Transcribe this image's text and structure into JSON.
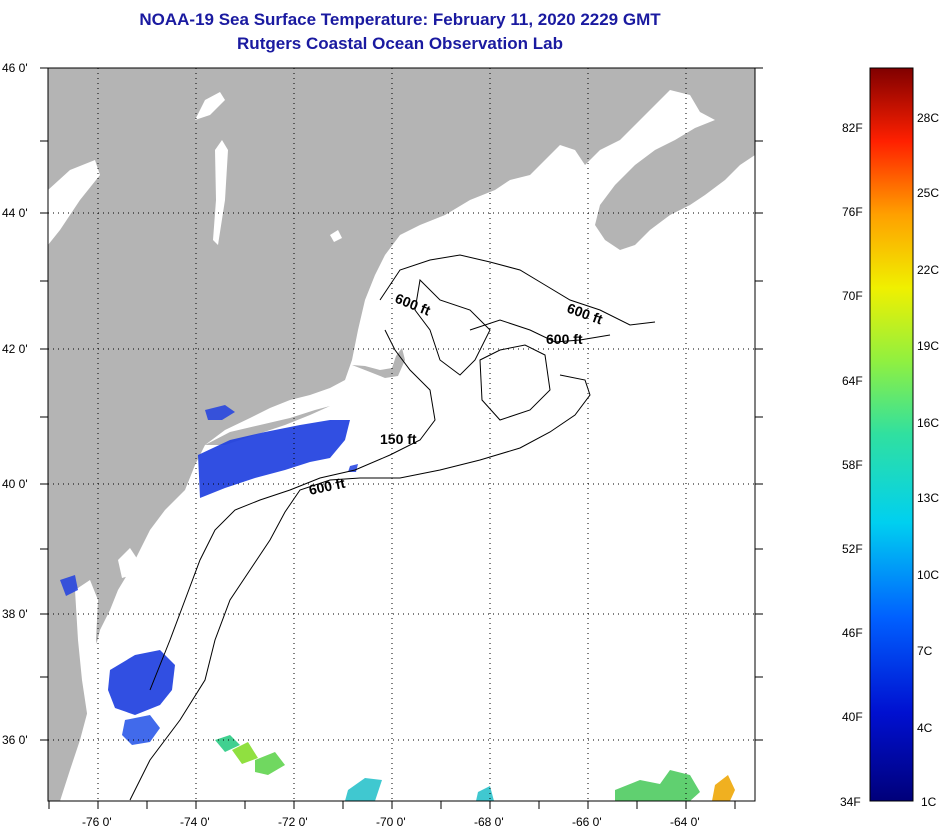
{
  "title": "NOAA-19 Sea Surface Temperature:  February 11, 2020 2229 GMT",
  "subtitle": "Rutgers Coastal Ocean Observation Lab",
  "latitude_labels": [
    "46 0'",
    "44 0'",
    "42 0'",
    "40 0'",
    "38 0'",
    "36 0'"
  ],
  "longitude_labels": [
    "-76 0'",
    "-74 0'",
    "-72 0'",
    "-70 0'",
    "-68 0'",
    "-66 0'",
    "-64 0'"
  ],
  "contour_labels": [
    "600 ft",
    "600 ft",
    "600 ft",
    "150 ft",
    "600 ft"
  ],
  "colorbar": {
    "fahrenheit": [
      "82F",
      "76F",
      "70F",
      "64F",
      "58F",
      "52F",
      "46F",
      "40F",
      "34F"
    ],
    "celsius": [
      "28C",
      "25C",
      "22C",
      "19C",
      "16C",
      "13C",
      "10C",
      "7C",
      "4C",
      "1C"
    ]
  },
  "colors": {
    "title": "#1a1aa0",
    "land": "#b4b4b4",
    "ocean": "#ffffff",
    "cold_water": "#2040e0"
  }
}
